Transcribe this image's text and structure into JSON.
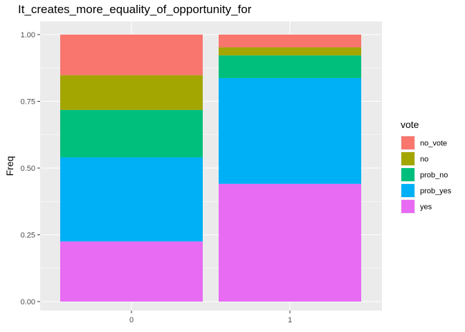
{
  "chart_data": {
    "type": "bar",
    "stacked": true,
    "title": "It_creates_more_equality_of_opportunity_for",
    "xlabel": "",
    "ylabel": "Freq",
    "categories": [
      "0",
      "1"
    ],
    "ylim": [
      0,
      1
    ],
    "yticks": [
      "0.00",
      "0.25",
      "0.50",
      "0.75",
      "1.00"
    ],
    "yticks_values": [
      0,
      0.25,
      0.5,
      0.75,
      1.0
    ],
    "legend": {
      "title": "vote",
      "position": "right"
    },
    "series": [
      {
        "name": "no_vote",
        "color": "#F8766D",
        "values": [
          0.152,
          0.048
        ]
      },
      {
        "name": "no",
        "color": "#A3A500",
        "values": [
          0.13,
          0.03
        ]
      },
      {
        "name": "prob_no",
        "color": "#00BF7D",
        "values": [
          0.178,
          0.085
        ]
      },
      {
        "name": "prob_yes",
        "color": "#00B0F6",
        "values": [
          0.315,
          0.396
        ]
      },
      {
        "name": "yes",
        "color": "#E76BF3",
        "values": [
          0.225,
          0.441
        ]
      }
    ],
    "stack_order_bottom_to_top": [
      "yes",
      "prob_yes",
      "prob_no",
      "no",
      "no_vote"
    ],
    "grid": true,
    "panel_background": "#EBEBEB",
    "grid_color": "#FFFFFF"
  }
}
